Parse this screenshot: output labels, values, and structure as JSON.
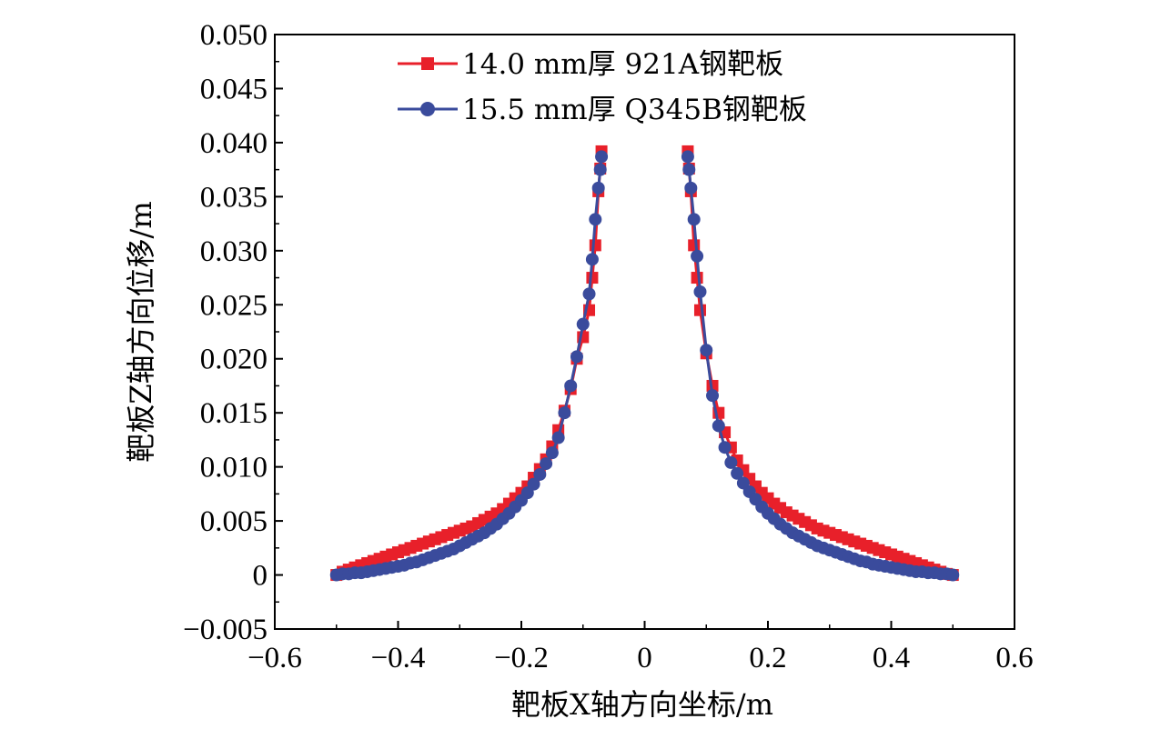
{
  "chart_data": {
    "type": "line",
    "xlabel": "靶板X轴方向坐标/m",
    "ylabel": "靶板Z轴方向位移/m",
    "xlim": [
      -0.6,
      0.6
    ],
    "ylim": [
      -0.005,
      0.05
    ],
    "x_ticks": [
      "−0.6",
      "−0.4",
      "−0.2",
      "0",
      "0.2",
      "0.4",
      "0.6"
    ],
    "y_ticks": [
      "−0.005",
      "0",
      "0.005",
      "0.010",
      "0.015",
      "0.020",
      "0.025",
      "0.030",
      "0.035",
      "0.040",
      "0.045",
      "0.050"
    ],
    "legend_position": "top-left",
    "series": [
      {
        "name": "14.0 mm厚 921A钢靶板",
        "color": "#e8202a",
        "marker": "square",
        "points": [
          [
            -0.5,
            0
          ],
          [
            -0.49,
            0.0003
          ],
          [
            -0.48,
            0.0005
          ],
          [
            -0.47,
            0.0007
          ],
          [
            -0.46,
            0.0009
          ],
          [
            -0.45,
            0.0011
          ],
          [
            -0.44,
            0.0013
          ],
          [
            -0.43,
            0.0015
          ],
          [
            -0.42,
            0.0017
          ],
          [
            -0.41,
            0.0019
          ],
          [
            -0.4,
            0.0021
          ],
          [
            -0.39,
            0.0023
          ],
          [
            -0.38,
            0.0025
          ],
          [
            -0.37,
            0.0027
          ],
          [
            -0.36,
            0.0029
          ],
          [
            -0.35,
            0.0031
          ],
          [
            -0.34,
            0.0033
          ],
          [
            -0.33,
            0.0035
          ],
          [
            -0.32,
            0.0037
          ],
          [
            -0.31,
            0.0039
          ],
          [
            -0.3,
            0.0041
          ],
          [
            -0.29,
            0.0043
          ],
          [
            -0.28,
            0.0045
          ],
          [
            -0.27,
            0.0048
          ],
          [
            -0.26,
            0.0051
          ],
          [
            -0.25,
            0.0054
          ],
          [
            -0.24,
            0.0057
          ],
          [
            -0.23,
            0.0061
          ],
          [
            -0.22,
            0.0066
          ],
          [
            -0.21,
            0.0071
          ],
          [
            -0.2,
            0.0076
          ],
          [
            -0.19,
            0.0082
          ],
          [
            -0.18,
            0.009
          ],
          [
            -0.17,
            0.0098
          ],
          [
            -0.16,
            0.0107
          ],
          [
            -0.15,
            0.0119
          ],
          [
            -0.14,
            0.0134
          ],
          [
            -0.13,
            0.0152
          ],
          [
            -0.12,
            0.0172
          ],
          [
            -0.11,
            0.02
          ],
          [
            -0.1,
            0.022
          ],
          [
            -0.09,
            0.0245
          ],
          [
            -0.085,
            0.0275
          ],
          [
            -0.08,
            0.0305
          ],
          [
            -0.075,
            0.0355
          ],
          [
            -0.072,
            0.0376
          ],
          [
            -0.07,
            0.0392
          ],
          [
            0.07,
            0.0392
          ],
          [
            0.072,
            0.0376
          ],
          [
            0.075,
            0.0355
          ],
          [
            0.08,
            0.0305
          ],
          [
            0.085,
            0.0275
          ],
          [
            0.09,
            0.0245
          ],
          [
            0.1,
            0.0205
          ],
          [
            0.11,
            0.0175
          ],
          [
            0.12,
            0.015
          ],
          [
            0.13,
            0.0132
          ],
          [
            0.14,
            0.0118
          ],
          [
            0.15,
            0.0106
          ],
          [
            0.16,
            0.0097
          ],
          [
            0.17,
            0.0089
          ],
          [
            0.18,
            0.0082
          ],
          [
            0.19,
            0.0076
          ],
          [
            0.2,
            0.0071
          ],
          [
            0.21,
            0.0066
          ],
          [
            0.22,
            0.0062
          ],
          [
            0.23,
            0.0058
          ],
          [
            0.24,
            0.0055
          ],
          [
            0.25,
            0.0052
          ],
          [
            0.26,
            0.0049
          ],
          [
            0.27,
            0.0046
          ],
          [
            0.28,
            0.0043
          ],
          [
            0.29,
            0.0041
          ],
          [
            0.3,
            0.0039
          ],
          [
            0.31,
            0.0037
          ],
          [
            0.32,
            0.0035
          ],
          [
            0.33,
            0.0033
          ],
          [
            0.34,
            0.0031
          ],
          [
            0.35,
            0.0029
          ],
          [
            0.36,
            0.0027
          ],
          [
            0.37,
            0.0025
          ],
          [
            0.38,
            0.0023
          ],
          [
            0.39,
            0.0021
          ],
          [
            0.4,
            0.0019
          ],
          [
            0.41,
            0.0017
          ],
          [
            0.42,
            0.0015
          ],
          [
            0.43,
            0.0013
          ],
          [
            0.44,
            0.0011
          ],
          [
            0.45,
            0.0009
          ],
          [
            0.46,
            0.0007
          ],
          [
            0.47,
            0.0005
          ],
          [
            0.48,
            0.0003
          ],
          [
            0.49,
            0.0001
          ],
          [
            0.5,
            0
          ]
        ]
      },
      {
        "name": "15.5 mm厚 Q345B钢靶板",
        "color": "#3a4b9c",
        "marker": "circle",
        "points": [
          [
            -0.5,
            0
          ],
          [
            -0.49,
            0.0001
          ],
          [
            -0.48,
            0.0001
          ],
          [
            -0.47,
            0.0002
          ],
          [
            -0.46,
            0.0002
          ],
          [
            -0.45,
            0.0003
          ],
          [
            -0.44,
            0.0004
          ],
          [
            -0.43,
            0.0005
          ],
          [
            -0.42,
            0.0006
          ],
          [
            -0.41,
            0.0007
          ],
          [
            -0.4,
            0.0008
          ],
          [
            -0.39,
            0.0009
          ],
          [
            -0.38,
            0.0011
          ],
          [
            -0.37,
            0.0012
          ],
          [
            -0.36,
            0.0014
          ],
          [
            -0.35,
            0.0016
          ],
          [
            -0.34,
            0.0018
          ],
          [
            -0.33,
            0.002
          ],
          [
            -0.32,
            0.0022
          ],
          [
            -0.31,
            0.0024
          ],
          [
            -0.3,
            0.0027
          ],
          [
            -0.29,
            0.003
          ],
          [
            -0.28,
            0.0033
          ],
          [
            -0.27,
            0.0036
          ],
          [
            -0.26,
            0.0039
          ],
          [
            -0.25,
            0.0043
          ],
          [
            -0.24,
            0.0047
          ],
          [
            -0.23,
            0.0052
          ],
          [
            -0.22,
            0.0057
          ],
          [
            -0.21,
            0.0063
          ],
          [
            -0.2,
            0.0069
          ],
          [
            -0.19,
            0.0076
          ],
          [
            -0.18,
            0.0084
          ],
          [
            -0.17,
            0.0093
          ],
          [
            -0.16,
            0.0103
          ],
          [
            -0.15,
            0.0113
          ],
          [
            -0.14,
            0.0127
          ],
          [
            -0.13,
            0.015
          ],
          [
            -0.12,
            0.0175
          ],
          [
            -0.11,
            0.0202
          ],
          [
            -0.1,
            0.0232
          ],
          [
            -0.09,
            0.026
          ],
          [
            -0.085,
            0.0292
          ],
          [
            -0.08,
            0.0329
          ],
          [
            -0.075,
            0.0358
          ],
          [
            -0.072,
            0.0375
          ],
          [
            -0.07,
            0.0387
          ],
          [
            0.07,
            0.0387
          ],
          [
            0.072,
            0.0375
          ],
          [
            0.075,
            0.0358
          ],
          [
            0.08,
            0.0329
          ],
          [
            0.085,
            0.0295
          ],
          [
            0.09,
            0.0262
          ],
          [
            0.1,
            0.0208
          ],
          [
            0.11,
            0.0166
          ],
          [
            0.12,
            0.0138
          ],
          [
            0.13,
            0.0118
          ],
          [
            0.14,
            0.0104
          ],
          [
            0.15,
            0.0094
          ],
          [
            0.16,
            0.0085
          ],
          [
            0.17,
            0.0077
          ],
          [
            0.18,
            0.007
          ],
          [
            0.19,
            0.0063
          ],
          [
            0.2,
            0.0057
          ],
          [
            0.21,
            0.0052
          ],
          [
            0.22,
            0.0047
          ],
          [
            0.23,
            0.0043
          ],
          [
            0.24,
            0.0039
          ],
          [
            0.25,
            0.0036
          ],
          [
            0.26,
            0.0033
          ],
          [
            0.27,
            0.003
          ],
          [
            0.28,
            0.0027
          ],
          [
            0.29,
            0.0025
          ],
          [
            0.3,
            0.0023
          ],
          [
            0.31,
            0.0021
          ],
          [
            0.32,
            0.0019
          ],
          [
            0.33,
            0.0017
          ],
          [
            0.34,
            0.0015
          ],
          [
            0.35,
            0.0013
          ],
          [
            0.36,
            0.0012
          ],
          [
            0.37,
            0.001
          ],
          [
            0.38,
            0.0009
          ],
          [
            0.39,
            0.0008
          ],
          [
            0.4,
            0.0007
          ],
          [
            0.41,
            0.0006
          ],
          [
            0.42,
            0.0005
          ],
          [
            0.43,
            0.0004
          ],
          [
            0.44,
            0.0003
          ],
          [
            0.45,
            0.0003
          ],
          [
            0.46,
            0.0002
          ],
          [
            0.47,
            0.0002
          ],
          [
            0.48,
            0.0001
          ],
          [
            0.49,
            0.0001
          ],
          [
            0.5,
            0
          ]
        ]
      }
    ]
  }
}
